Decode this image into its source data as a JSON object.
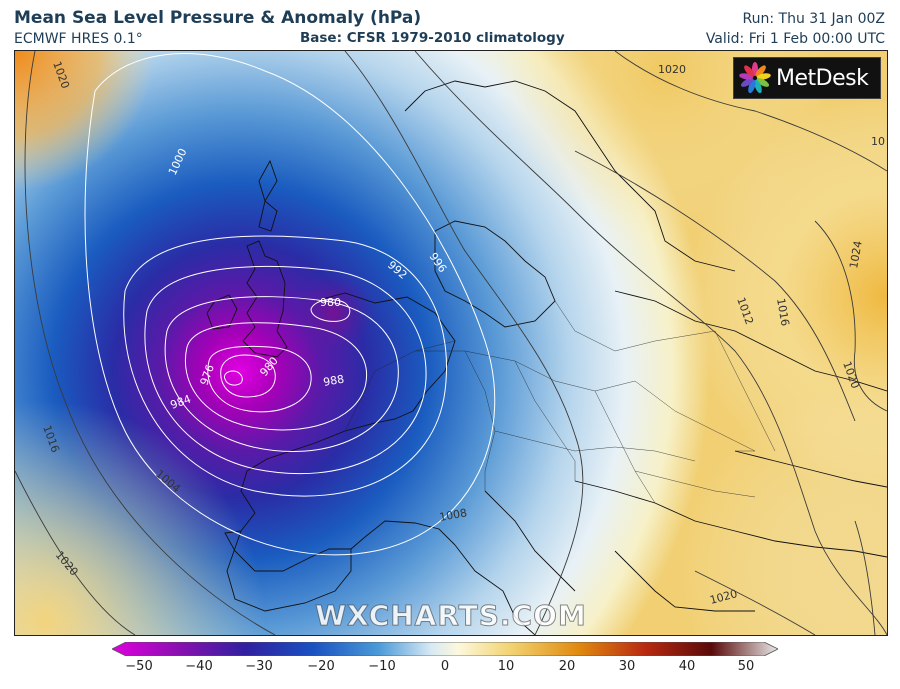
{
  "header": {
    "title": "Mean Sea Level Pressure & Anomaly (hPa)",
    "subtitle": "ECMWF HRES 0.1°",
    "base": "Base: CFSR 1979-2010 climatology",
    "run": "Run: Thu 31 Jan 00Z",
    "valid": "Valid: Fri 1 Feb 00:00 UTC"
  },
  "logo": {
    "text": "MetDesk"
  },
  "watermark": "WXCHARTS.COM",
  "colorbar": {
    "ticks": [
      "−50",
      "−40",
      "−30",
      "−20",
      "−10",
      "0",
      "10",
      "20",
      "30",
      "40",
      "50"
    ],
    "colors": {
      "min": "#d400d4",
      "neg": "#1a2a9a",
      "zero": "#fdfbe8",
      "pos": "#e08a10",
      "max": "#f0f0f0"
    }
  },
  "isobars": {
    "white": [
      "1000",
      "992",
      "996",
      "980",
      "976",
      "980",
      "984",
      "988",
      "992"
    ],
    "dark": [
      "1020",
      "1016",
      "1004",
      "1008",
      "1012",
      "1016",
      "1020",
      "1020",
      "1024",
      "1020",
      "1020",
      "10"
    ]
  }
}
